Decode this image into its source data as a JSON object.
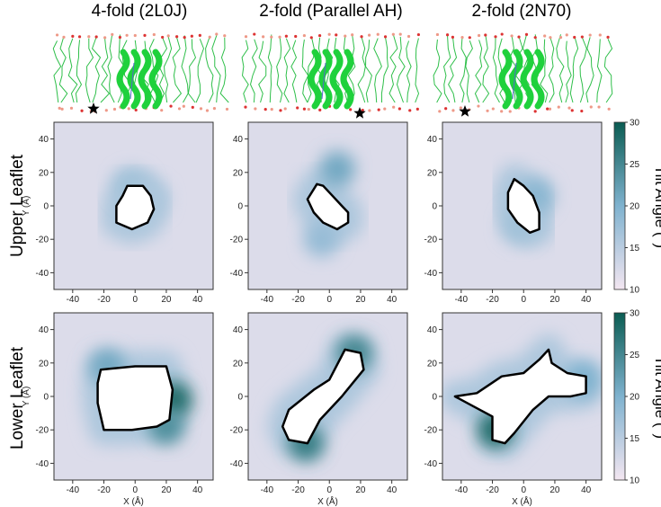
{
  "columns": [
    "4-fold (2L0J)",
    "2-fold (Parallel AH)",
    "2-fold (2N70)"
  ],
  "rows": [
    "Upper Leaflet",
    "Lower Leaflet"
  ],
  "colorbar": {
    "label": "Tilt Angle (°)",
    "min": 10,
    "max": 30,
    "ticks": [
      "10",
      "15",
      "20",
      "25",
      "30"
    ]
  },
  "colors": {
    "low": "#f3e6f1",
    "mid": "#7fb2cf",
    "high": "#0a5c52",
    "protein": "#2ecc40",
    "outline": "#000000"
  },
  "chart_data": [
    {
      "type": "heatmap",
      "row": "Upper Leaflet",
      "column": "4-fold (2L0J)",
      "xlabel": "",
      "ylabel": "Y (Å)",
      "xlim": [
        -52,
        50
      ],
      "ylim": [
        -50,
        50
      ],
      "x_ticks": [
        "-40",
        "-20",
        "0",
        "20",
        "40"
      ],
      "y_ticks": [
        "40",
        "20",
        "0",
        "-20",
        "-40"
      ],
      "background_tilt": 12,
      "hotspots": [
        {
          "x": -2,
          "y": 12,
          "tilt": 17
        },
        {
          "x": 10,
          "y": 4,
          "tilt": 16
        }
      ],
      "exclusion_outline": [
        [
          -5,
          12
        ],
        [
          5,
          12
        ],
        [
          10,
          6
        ],
        [
          12,
          -2
        ],
        [
          8,
          -10
        ],
        [
          -2,
          -14
        ],
        [
          -12,
          -10
        ],
        [
          -12,
          0
        ],
        [
          -8,
          6
        ]
      ]
    },
    {
      "type": "heatmap",
      "row": "Upper Leaflet",
      "column": "2-fold (Parallel AH)",
      "xlabel": "",
      "ylabel": "",
      "xlim": [
        -52,
        50
      ],
      "ylim": [
        -50,
        50
      ],
      "x_ticks": [
        "-40",
        "-20",
        "0",
        "20",
        "40"
      ],
      "y_ticks": [
        "40",
        "20",
        "0",
        "-20",
        "-40"
      ],
      "background_tilt": 12,
      "hotspots": [
        {
          "x": 5,
          "y": 22,
          "tilt": 21
        },
        {
          "x": -5,
          "y": -20,
          "tilt": 18
        }
      ],
      "exclusion_outline": [
        [
          -8,
          13
        ],
        [
          -4,
          12
        ],
        [
          2,
          6
        ],
        [
          8,
          0
        ],
        [
          12,
          -4
        ],
        [
          12,
          -10
        ],
        [
          5,
          -14
        ],
        [
          -4,
          -10
        ],
        [
          -10,
          -4
        ],
        [
          -14,
          4
        ]
      ]
    },
    {
      "type": "heatmap",
      "row": "Upper Leaflet",
      "column": "2-fold (2N70)",
      "xlabel": "",
      "ylabel": "",
      "xlim": [
        -52,
        50
      ],
      "ylim": [
        -50,
        50
      ],
      "x_ticks": [
        "-40",
        "-20",
        "0",
        "20",
        "40"
      ],
      "y_ticks": [
        "40",
        "20",
        "0",
        "-20",
        "-40"
      ],
      "background_tilt": 12,
      "hotspots": [
        {
          "x": 8,
          "y": 6,
          "tilt": 19
        },
        {
          "x": -3,
          "y": -12,
          "tilt": 17
        }
      ],
      "exclusion_outline": [
        [
          -6,
          16
        ],
        [
          0,
          12
        ],
        [
          6,
          6
        ],
        [
          10,
          -4
        ],
        [
          10,
          -14
        ],
        [
          4,
          -16
        ],
        [
          -4,
          -10
        ],
        [
          -10,
          -2
        ],
        [
          -10,
          8
        ]
      ]
    },
    {
      "type": "heatmap",
      "row": "Lower Leaflet",
      "column": "4-fold (2L0J)",
      "xlabel": "X (Å)",
      "ylabel": "Y (Å)",
      "xlim": [
        -52,
        50
      ],
      "ylim": [
        -50,
        50
      ],
      "x_ticks": [
        "-40",
        "-20",
        "0",
        "20",
        "40"
      ],
      "y_ticks": [
        "40",
        "20",
        "0",
        "-20",
        "-40"
      ],
      "background_tilt": 12,
      "hotspots": [
        {
          "x": 25,
          "y": -2,
          "tilt": 28
        },
        {
          "x": 20,
          "y": -18,
          "tilt": 24
        },
        {
          "x": -18,
          "y": 18,
          "tilt": 21
        }
      ],
      "exclusion_outline": [
        [
          -22,
          16
        ],
        [
          0,
          18
        ],
        [
          20,
          18
        ],
        [
          24,
          4
        ],
        [
          22,
          -14
        ],
        [
          14,
          -18
        ],
        [
          -2,
          -20
        ],
        [
          -20,
          -20
        ],
        [
          -24,
          -4
        ],
        [
          -24,
          8
        ]
      ]
    },
    {
      "type": "heatmap",
      "row": "Lower Leaflet",
      "column": "2-fold (Parallel AH)",
      "xlabel": "X (Å)",
      "ylabel": "",
      "xlim": [
        -52,
        50
      ],
      "ylim": [
        -50,
        50
      ],
      "x_ticks": [
        "-40",
        "-20",
        "0",
        "20",
        "40"
      ],
      "y_ticks": [
        "40",
        "20",
        "0",
        "-20",
        "-40"
      ],
      "background_tilt": 12,
      "hotspots": [
        {
          "x": -15,
          "y": -28,
          "tilt": 26
        },
        {
          "x": 16,
          "y": 26,
          "tilt": 25
        }
      ],
      "exclusion_outline": [
        [
          -26,
          -8
        ],
        [
          -10,
          4
        ],
        [
          0,
          10
        ],
        [
          10,
          28
        ],
        [
          20,
          26
        ],
        [
          22,
          16
        ],
        [
          8,
          0
        ],
        [
          -6,
          -14
        ],
        [
          -14,
          -28
        ],
        [
          -26,
          -26
        ],
        [
          -30,
          -18
        ]
      ]
    },
    {
      "type": "heatmap",
      "row": "Lower Leaflet",
      "column": "2-fold (2N70)",
      "xlabel": "X (Å)",
      "ylabel": "",
      "xlim": [
        -52,
        50
      ],
      "ylim": [
        -50,
        50
      ],
      "x_ticks": [
        "-40",
        "-20",
        "0",
        "20",
        "40"
      ],
      "y_ticks": [
        "40",
        "20",
        "0",
        "-20",
        "-40"
      ],
      "background_tilt": 12,
      "hotspots": [
        {
          "x": -18,
          "y": -20,
          "tilt": 28
        },
        {
          "x": 38,
          "y": 10,
          "tilt": 20
        }
      ],
      "exclusion_outline": [
        [
          -44,
          0
        ],
        [
          -30,
          2
        ],
        [
          -14,
          12
        ],
        [
          0,
          14
        ],
        [
          10,
          22
        ],
        [
          16,
          28
        ],
        [
          18,
          20
        ],
        [
          28,
          14
        ],
        [
          40,
          12
        ],
        [
          40,
          2
        ],
        [
          30,
          0
        ],
        [
          16,
          0
        ],
        [
          6,
          -8
        ],
        [
          -6,
          -22
        ],
        [
          -12,
          -28
        ],
        [
          -20,
          -26
        ],
        [
          -20,
          -12
        ],
        [
          -32,
          -6
        ]
      ]
    }
  ]
}
